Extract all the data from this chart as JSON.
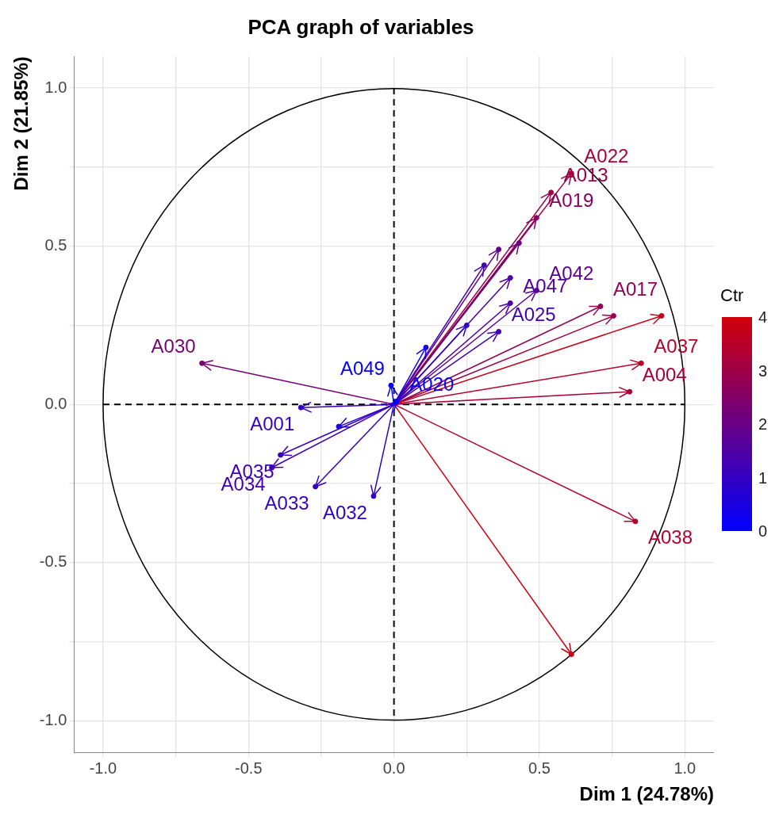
{
  "chart_data": {
    "type": "scatter",
    "title": "PCA graph of variables",
    "xlabel": "Dim 1 (24.78%)",
    "ylabel": "Dim 2 (21.85%)",
    "clabel": "Ctr",
    "clim": [
      0,
      4
    ],
    "cticks": [
      0,
      1,
      2,
      3,
      4
    ],
    "xlim": [
      -1.1,
      1.1
    ],
    "ylim": [
      -1.1,
      1.1
    ],
    "xticks": [
      {
        "value": -1,
        "label": "-1.0"
      },
      {
        "value": -0.75,
        "label": null
      },
      {
        "value": -0.5,
        "label": "-0.5"
      },
      {
        "value": -0.25,
        "label": null
      },
      {
        "value": 0,
        "label": "0.0"
      },
      {
        "value": 0.25,
        "label": null
      },
      {
        "value": 0.5,
        "label": "0.5"
      },
      {
        "value": 0.75,
        "label": null
      },
      {
        "value": 1,
        "label": "1.0"
      }
    ],
    "yticks": [
      {
        "value": -1,
        "label": "-1.0"
      },
      {
        "value": -0.75,
        "label": null
      },
      {
        "value": -0.5,
        "label": "-0.5"
      },
      {
        "value": -0.25,
        "label": null
      },
      {
        "value": 0,
        "label": "0.0"
      },
      {
        "value": 0.25,
        "label": null
      },
      {
        "value": 0.5,
        "label": "0.5"
      },
      {
        "value": 0.75,
        "label": null
      },
      {
        "value": 1,
        "label": "1.0"
      }
    ],
    "grid": true,
    "marker": "circle",
    "x": [
      0.61,
      0.54,
      0.49,
      0.43,
      0.36,
      0.31,
      0.4,
      0.49,
      0.4,
      0.36,
      0.25,
      0.11,
      0.71,
      0.755,
      0.92,
      0.85,
      0.81,
      0.83,
      0.61,
      -0.66,
      -0.01,
      0.01,
      -0.32,
      -0.19,
      -0.39,
      -0.42,
      -0.27,
      -0.07
    ],
    "values": [
      0.73,
      0.67,
      0.59,
      0.51,
      0.49,
      0.44,
      0.4,
      0.36,
      0.32,
      0.23,
      0.25,
      0.18,
      0.31,
      0.28,
      0.28,
      0.13,
      0.04,
      -0.37,
      -0.79,
      0.13,
      0.06,
      0.01,
      -0.01,
      -0.07,
      -0.16,
      -0.2,
      -0.26,
      -0.29
    ],
    "cvalues": [
      3.2,
      3.0,
      2.6,
      2.0,
      1.8,
      1.3,
      1.5,
      1.7,
      1.5,
      1.2,
      0.9,
      0.4,
      2.8,
      3.0,
      3.8,
      3.5,
      3.2,
      3.4,
      3.9,
      2.3,
      0.1,
      0,
      1.0,
      0.6,
      1.1,
      1.2,
      1.0,
      0.9
    ],
    "value_labels": [
      "A022",
      "A013",
      "A019",
      null,
      null,
      null,
      null,
      "A042",
      "A047",
      "A025",
      null,
      null,
      "A017",
      null,
      null,
      "A037",
      "A004",
      "A038",
      null,
      "A030",
      "A049",
      "A020",
      "A001",
      null,
      "A035",
      "A034",
      "A033",
      "A032"
    ]
  }
}
